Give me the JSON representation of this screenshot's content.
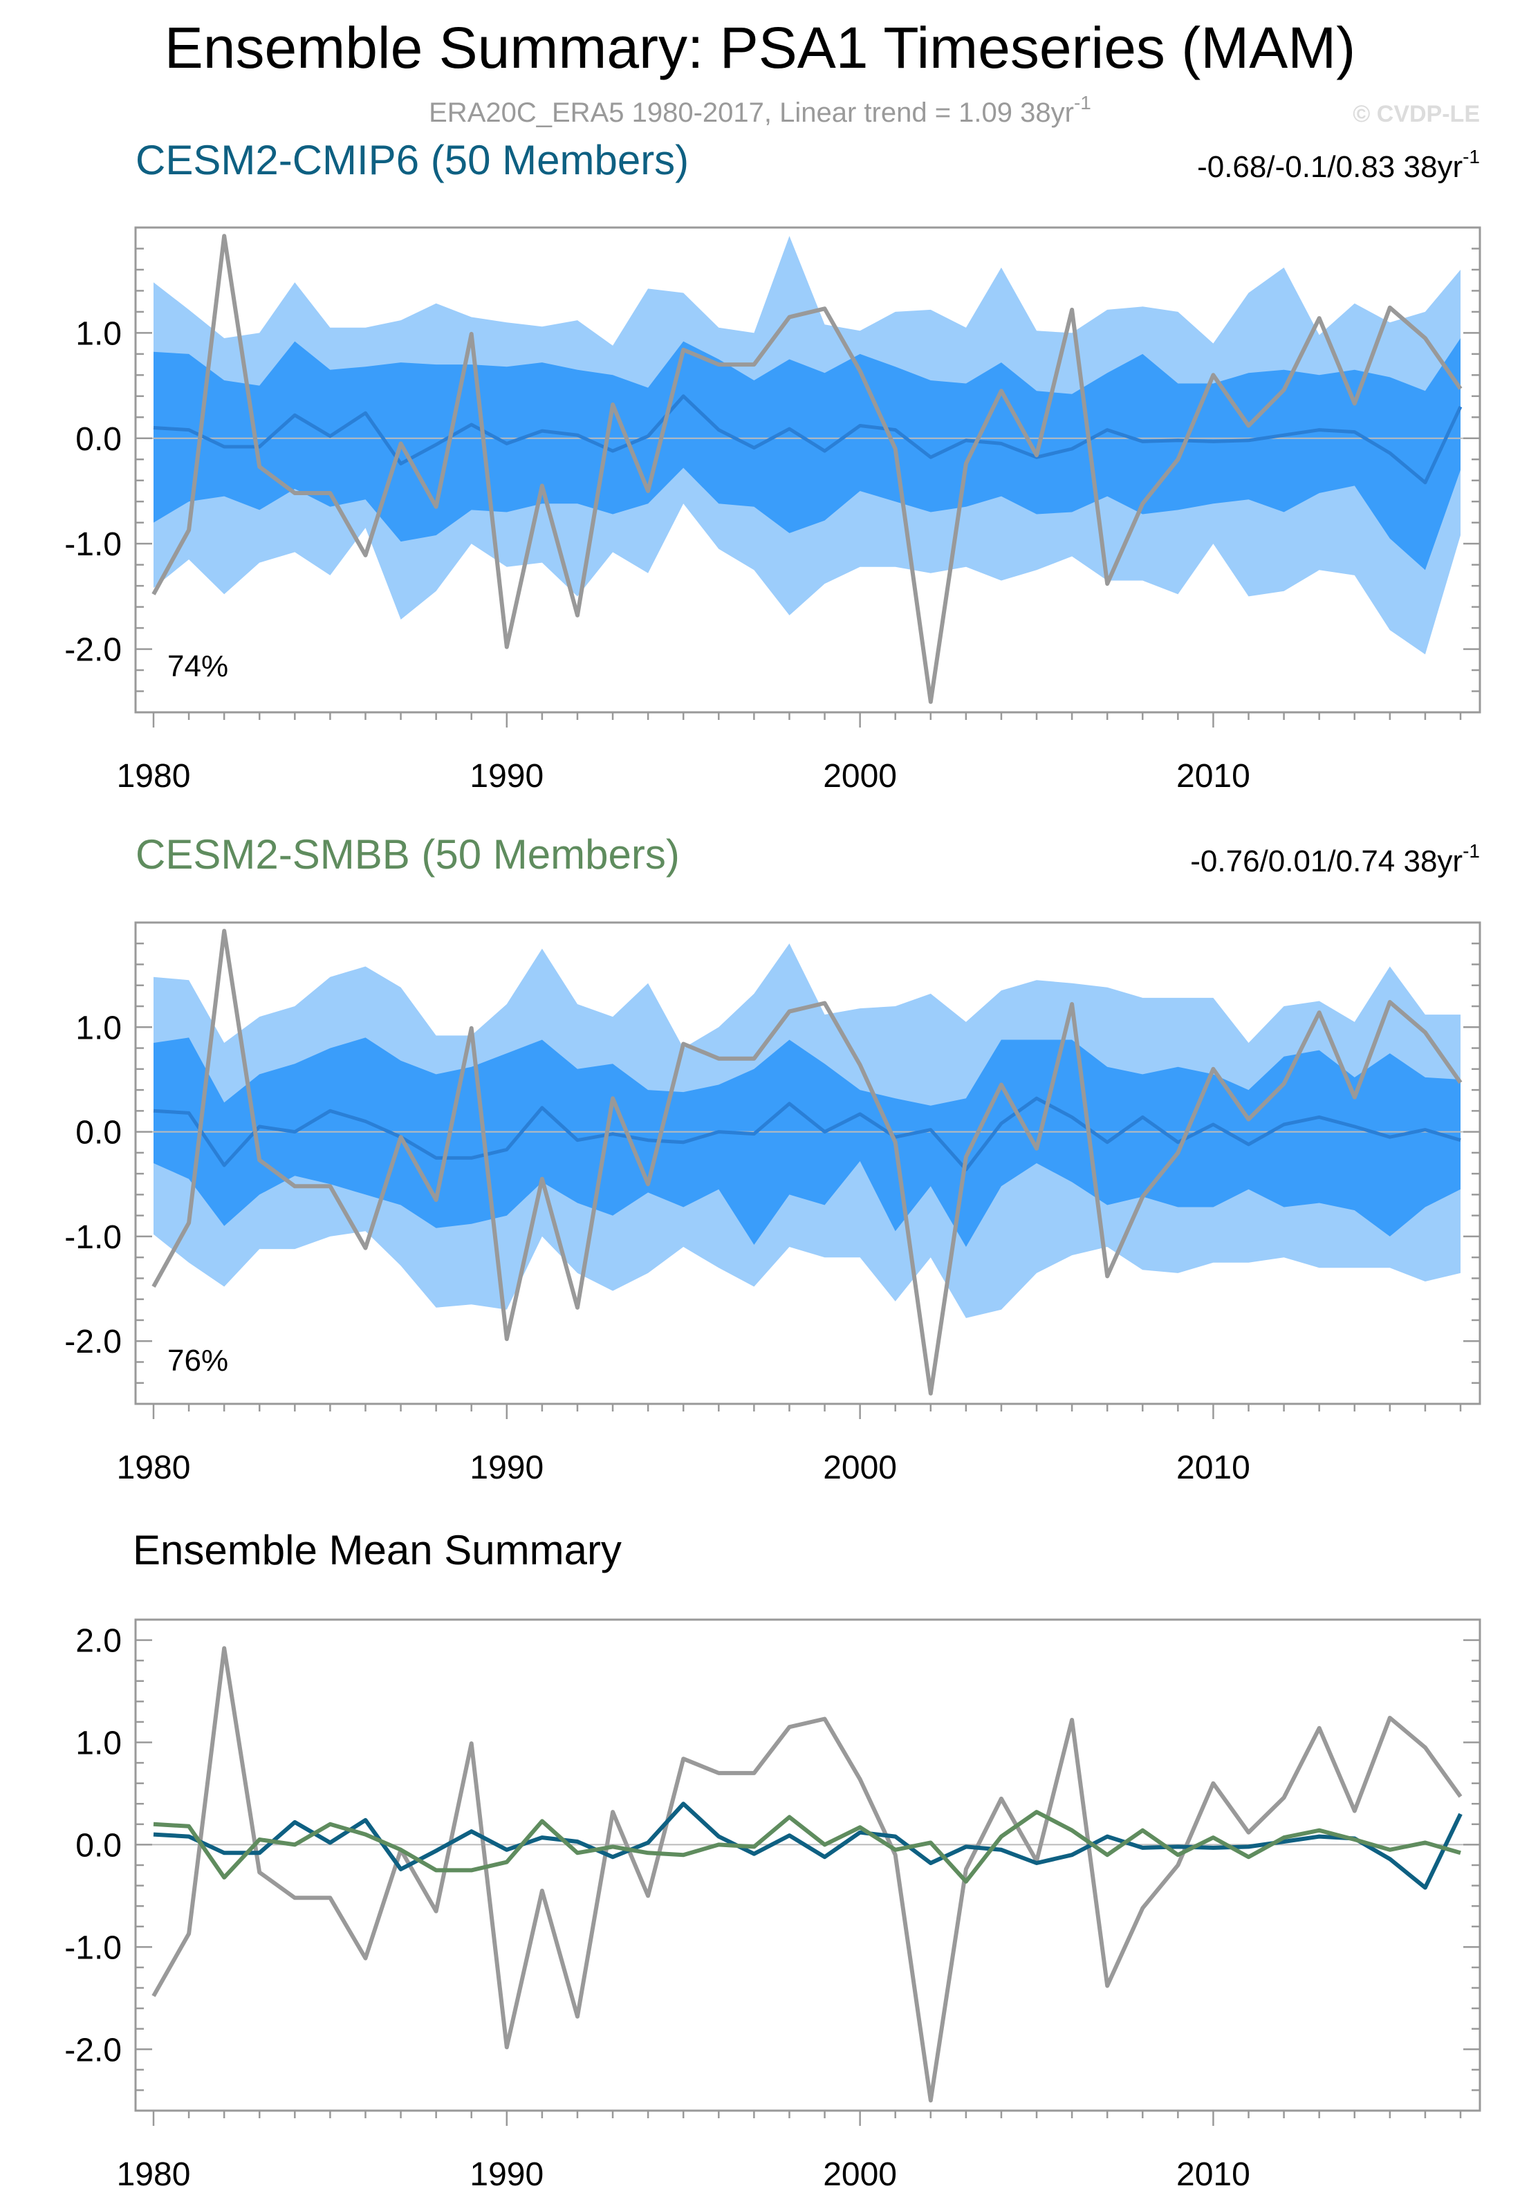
{
  "figure": {
    "title": "Ensemble Summary: PSA1 Timeseries (MAM)",
    "subtitle": "ERA20C_ERA5 1980-2017, Linear trend = 1.09 38yr",
    "subtitle_sup": "-1",
    "watermark": "© CVDP-LE"
  },
  "colors": {
    "outer_band": "#9ccdfb",
    "inner_band": "#3a9dfa",
    "member_mean_line": "#2a7fd6",
    "observations": "#999999",
    "cesm2_cmip6": "#0e6082",
    "cesm2_smbb": "#5f8c5e",
    "zero_line": "#bbbbbb",
    "frame": "#999999"
  },
  "chart_data": [
    {
      "type": "area",
      "title": "CESM2-CMIP6 (50 Members)",
      "title_color": "#0e6082",
      "trend_label": "-0.68/-0.1/0.83 38yr",
      "trend_sup": "-1",
      "percent_label": "74%",
      "xlim": [
        1980,
        2017
      ],
      "ylim": [
        -2.6,
        2.0
      ],
      "x_ticks": [
        1980,
        1990,
        2000,
        2010
      ],
      "x_tick_labels": [
        "1980",
        "1990",
        "2000",
        "2010"
      ],
      "y_ticks": [
        -2.0,
        -1.0,
        0.0,
        1.0
      ],
      "y_tick_labels": [
        "-2.0",
        "-1.0",
        "0.0",
        "1.0"
      ],
      "x": [
        1980,
        1981,
        1982,
        1983,
        1984,
        1985,
        1986,
        1987,
        1988,
        1989,
        1990,
        1991,
        1992,
        1993,
        1994,
        1995,
        1996,
        1997,
        1998,
        1999,
        2000,
        2001,
        2002,
        2003,
        2004,
        2005,
        2006,
        2007,
        2008,
        2009,
        2010,
        2011,
        2012,
        2013,
        2014,
        2015,
        2016,
        2017
      ],
      "outer_upper": [
        1.48,
        1.22,
        0.95,
        1.0,
        1.48,
        1.05,
        1.05,
        1.12,
        1.28,
        1.15,
        1.1,
        1.06,
        1.12,
        0.88,
        1.42,
        1.38,
        1.05,
        1.0,
        1.92,
        1.08,
        1.02,
        1.2,
        1.22,
        1.05,
        1.62,
        1.02,
        1.0,
        1.22,
        1.25,
        1.2,
        0.9,
        1.38,
        1.62,
        0.98,
        1.28,
        1.1,
        1.2,
        1.6
      ],
      "outer_lower": [
        -1.42,
        -1.15,
        -1.48,
        -1.18,
        -1.08,
        -1.3,
        -0.85,
        -1.72,
        -1.45,
        -1.0,
        -1.22,
        -1.18,
        -1.5,
        -1.08,
        -1.28,
        -0.62,
        -1.05,
        -1.25,
        -1.68,
        -1.38,
        -1.22,
        -1.22,
        -1.28,
        -1.22,
        -1.35,
        -1.25,
        -1.12,
        -1.35,
        -1.35,
        -1.48,
        -1.0,
        -1.5,
        -1.45,
        -1.25,
        -1.3,
        -1.82,
        -2.05,
        -0.92
      ],
      "inner_upper": [
        0.82,
        0.8,
        0.55,
        0.5,
        0.92,
        0.65,
        0.68,
        0.72,
        0.7,
        0.7,
        0.68,
        0.72,
        0.65,
        0.6,
        0.48,
        0.92,
        0.75,
        0.55,
        0.75,
        0.62,
        0.8,
        0.68,
        0.55,
        0.52,
        0.72,
        0.45,
        0.42,
        0.62,
        0.8,
        0.52,
        0.52,
        0.62,
        0.65,
        0.6,
        0.65,
        0.58,
        0.45,
        0.95
      ],
      "inner_lower": [
        -0.8,
        -0.6,
        -0.55,
        -0.68,
        -0.48,
        -0.65,
        -0.58,
        -0.98,
        -0.92,
        -0.68,
        -0.7,
        -0.62,
        -0.62,
        -0.72,
        -0.62,
        -0.28,
        -0.62,
        -0.65,
        -0.9,
        -0.78,
        -0.5,
        -0.6,
        -0.7,
        -0.65,
        -0.55,
        -0.72,
        -0.7,
        -0.55,
        -0.72,
        -0.68,
        -0.62,
        -0.58,
        -0.7,
        -0.52,
        -0.45,
        -0.95,
        -1.25,
        -0.3
      ],
      "mean": [
        0.1,
        0.08,
        -0.08,
        -0.08,
        0.22,
        0.02,
        0.24,
        -0.24,
        -0.06,
        0.13,
        -0.05,
        0.07,
        0.03,
        -0.12,
        0.02,
        0.4,
        0.08,
        -0.09,
        0.09,
        -0.12,
        0.12,
        0.08,
        -0.18,
        -0.02,
        -0.05,
        -0.18,
        -0.1,
        0.08,
        -0.03,
        -0.02,
        -0.03,
        -0.02,
        0.03,
        0.08,
        0.06,
        -0.14,
        -0.42,
        0.3
      ],
      "observed": [
        -1.48,
        -0.87,
        1.92,
        -0.27,
        -0.52,
        -0.52,
        -1.11,
        -0.05,
        -0.65,
        0.99,
        -1.98,
        -0.45,
        -1.68,
        0.32,
        -0.5,
        0.84,
        0.7,
        0.7,
        1.15,
        1.23,
        0.64,
        -0.1,
        -2.5,
        -0.24,
        0.45,
        -0.16,
        1.22,
        -1.38,
        -0.62,
        -0.2,
        0.6,
        0.12,
        0.46,
        1.14,
        0.33,
        1.24,
        0.95,
        0.47
      ]
    },
    {
      "type": "area",
      "title": "CESM2-SMBB (50 Members)",
      "title_color": "#5f8c5e",
      "trend_label": "-0.76/0.01/0.74 38yr",
      "trend_sup": "-1",
      "percent_label": "76%",
      "xlim": [
        1980,
        2017
      ],
      "ylim": [
        -2.6,
        2.0
      ],
      "x_ticks": [
        1980,
        1990,
        2000,
        2010
      ],
      "x_tick_labels": [
        "1980",
        "1990",
        "2000",
        "2010"
      ],
      "y_ticks": [
        -2.0,
        -1.0,
        0.0,
        1.0
      ],
      "y_tick_labels": [
        "-2.0",
        "-1.0",
        "0.0",
        "1.0"
      ],
      "x": [
        1980,
        1981,
        1982,
        1983,
        1984,
        1985,
        1986,
        1987,
        1988,
        1989,
        1990,
        1991,
        1992,
        1993,
        1994,
        1995,
        1996,
        1997,
        1998,
        1999,
        2000,
        2001,
        2002,
        2003,
        2004,
        2005,
        2006,
        2007,
        2008,
        2009,
        2010,
        2011,
        2012,
        2013,
        2014,
        2015,
        2016,
        2017
      ],
      "outer_upper": [
        1.48,
        1.45,
        0.85,
        1.1,
        1.2,
        1.48,
        1.58,
        1.38,
        0.92,
        0.92,
        1.22,
        1.75,
        1.22,
        1.1,
        1.42,
        0.8,
        1.0,
        1.32,
        1.8,
        1.12,
        1.18,
        1.2,
        1.32,
        1.05,
        1.35,
        1.45,
        1.42,
        1.38,
        1.28,
        1.28,
        1.28,
        0.85,
        1.2,
        1.25,
        1.05,
        1.58,
        1.12,
        1.12
      ],
      "outer_lower": [
        -0.98,
        -1.25,
        -1.48,
        -1.12,
        -1.12,
        -1.0,
        -0.95,
        -1.28,
        -1.68,
        -1.65,
        -1.7,
        -1.0,
        -1.35,
        -1.52,
        -1.35,
        -1.1,
        -1.3,
        -1.48,
        -1.1,
        -1.2,
        -1.2,
        -1.62,
        -1.2,
        -1.78,
        -1.7,
        -1.35,
        -1.18,
        -1.1,
        -1.32,
        -1.35,
        -1.25,
        -1.25,
        -1.2,
        -1.3,
        -1.3,
        -1.3,
        -1.43,
        -1.35
      ],
      "inner_upper": [
        0.85,
        0.9,
        0.28,
        0.55,
        0.65,
        0.8,
        0.9,
        0.68,
        0.55,
        0.62,
        0.75,
        0.88,
        0.6,
        0.65,
        0.4,
        0.38,
        0.45,
        0.6,
        0.88,
        0.65,
        0.4,
        0.32,
        0.25,
        0.32,
        0.88,
        0.88,
        0.88,
        0.62,
        0.55,
        0.62,
        0.55,
        0.4,
        0.72,
        0.78,
        0.52,
        0.75,
        0.52,
        0.5
      ],
      "inner_lower": [
        -0.3,
        -0.45,
        -0.9,
        -0.6,
        -0.42,
        -0.5,
        -0.6,
        -0.7,
        -0.92,
        -0.88,
        -0.8,
        -0.48,
        -0.68,
        -0.8,
        -0.58,
        -0.72,
        -0.55,
        -1.08,
        -0.6,
        -0.7,
        -0.28,
        -0.95,
        -0.52,
        -1.1,
        -0.52,
        -0.3,
        -0.48,
        -0.7,
        -0.62,
        -0.72,
        -0.72,
        -0.55,
        -0.72,
        -0.68,
        -0.75,
        -1.0,
        -0.72,
        -0.55
      ],
      "mean": [
        0.2,
        0.18,
        -0.32,
        0.05,
        0.0,
        0.2,
        0.1,
        -0.05,
        -0.25,
        -0.25,
        -0.17,
        0.23,
        -0.08,
        -0.02,
        -0.08,
        -0.1,
        0.0,
        -0.02,
        0.27,
        0.0,
        0.17,
        -0.05,
        0.02,
        -0.36,
        0.08,
        0.32,
        0.14,
        -0.1,
        0.14,
        -0.1,
        0.07,
        -0.12,
        0.07,
        0.14,
        0.05,
        -0.05,
        0.02,
        -0.08
      ],
      "observed": [
        -1.48,
        -0.87,
        1.92,
        -0.27,
        -0.52,
        -0.52,
        -1.11,
        -0.05,
        -0.65,
        0.99,
        -1.98,
        -0.45,
        -1.68,
        0.32,
        -0.5,
        0.84,
        0.7,
        0.7,
        1.15,
        1.23,
        0.64,
        -0.1,
        -2.5,
        -0.24,
        0.45,
        -0.16,
        1.22,
        -1.38,
        -0.62,
        -0.2,
        0.6,
        0.12,
        0.46,
        1.14,
        0.33,
        1.24,
        0.95,
        0.47
      ]
    },
    {
      "type": "line",
      "title": "Ensemble Mean Summary",
      "title_color": "#000000",
      "xlim": [
        1980,
        2017
      ],
      "ylim": [
        -2.6,
        2.2
      ],
      "x_ticks": [
        1980,
        1990,
        2000,
        2010
      ],
      "x_tick_labels": [
        "1980",
        "1990",
        "2000",
        "2010"
      ],
      "y_ticks": [
        -2.0,
        -1.0,
        0.0,
        1.0,
        2.0
      ],
      "y_tick_labels": [
        "-2.0",
        "-1.0",
        "0.0",
        "1.0",
        "2.0"
      ],
      "x": [
        1980,
        1981,
        1982,
        1983,
        1984,
        1985,
        1986,
        1987,
        1988,
        1989,
        1990,
        1991,
        1992,
        1993,
        1994,
        1995,
        1996,
        1997,
        1998,
        1999,
        2000,
        2001,
        2002,
        2003,
        2004,
        2005,
        2006,
        2007,
        2008,
        2009,
        2010,
        2011,
        2012,
        2013,
        2014,
        2015,
        2016,
        2017
      ],
      "series": [
        {
          "key": "observed",
          "color": "#999999",
          "values": [
            -1.48,
            -0.87,
            1.92,
            -0.27,
            -0.52,
            -0.52,
            -1.11,
            -0.05,
            -0.65,
            0.99,
            -1.98,
            -0.45,
            -1.68,
            0.32,
            -0.5,
            0.84,
            0.7,
            0.7,
            1.15,
            1.23,
            0.64,
            -0.1,
            -2.5,
            -0.24,
            0.45,
            -0.16,
            1.22,
            -1.38,
            -0.62,
            -0.2,
            0.6,
            0.12,
            0.46,
            1.14,
            0.33,
            1.24,
            0.95,
            0.47
          ]
        },
        {
          "key": "cesm2_cmip6",
          "color": "#0e6082",
          "values": [
            0.1,
            0.08,
            -0.08,
            -0.08,
            0.22,
            0.02,
            0.24,
            -0.24,
            -0.06,
            0.13,
            -0.05,
            0.07,
            0.03,
            -0.12,
            0.02,
            0.4,
            0.08,
            -0.09,
            0.09,
            -0.12,
            0.12,
            0.08,
            -0.18,
            -0.02,
            -0.05,
            -0.18,
            -0.1,
            0.08,
            -0.03,
            -0.02,
            -0.03,
            -0.02,
            0.03,
            0.08,
            0.06,
            -0.14,
            -0.42,
            0.3
          ]
        },
        {
          "key": "cesm2_smbb",
          "color": "#5f8c5e",
          "values": [
            0.2,
            0.18,
            -0.32,
            0.05,
            0.0,
            0.2,
            0.1,
            -0.05,
            -0.25,
            -0.25,
            -0.17,
            0.23,
            -0.08,
            -0.02,
            -0.08,
            -0.1,
            0.0,
            -0.02,
            0.27,
            0.0,
            0.17,
            -0.05,
            0.02,
            -0.36,
            0.08,
            0.32,
            0.14,
            -0.1,
            0.14,
            -0.1,
            0.07,
            -0.12,
            0.07,
            0.14,
            0.05,
            -0.05,
            0.02,
            -0.08
          ]
        }
      ]
    }
  ]
}
